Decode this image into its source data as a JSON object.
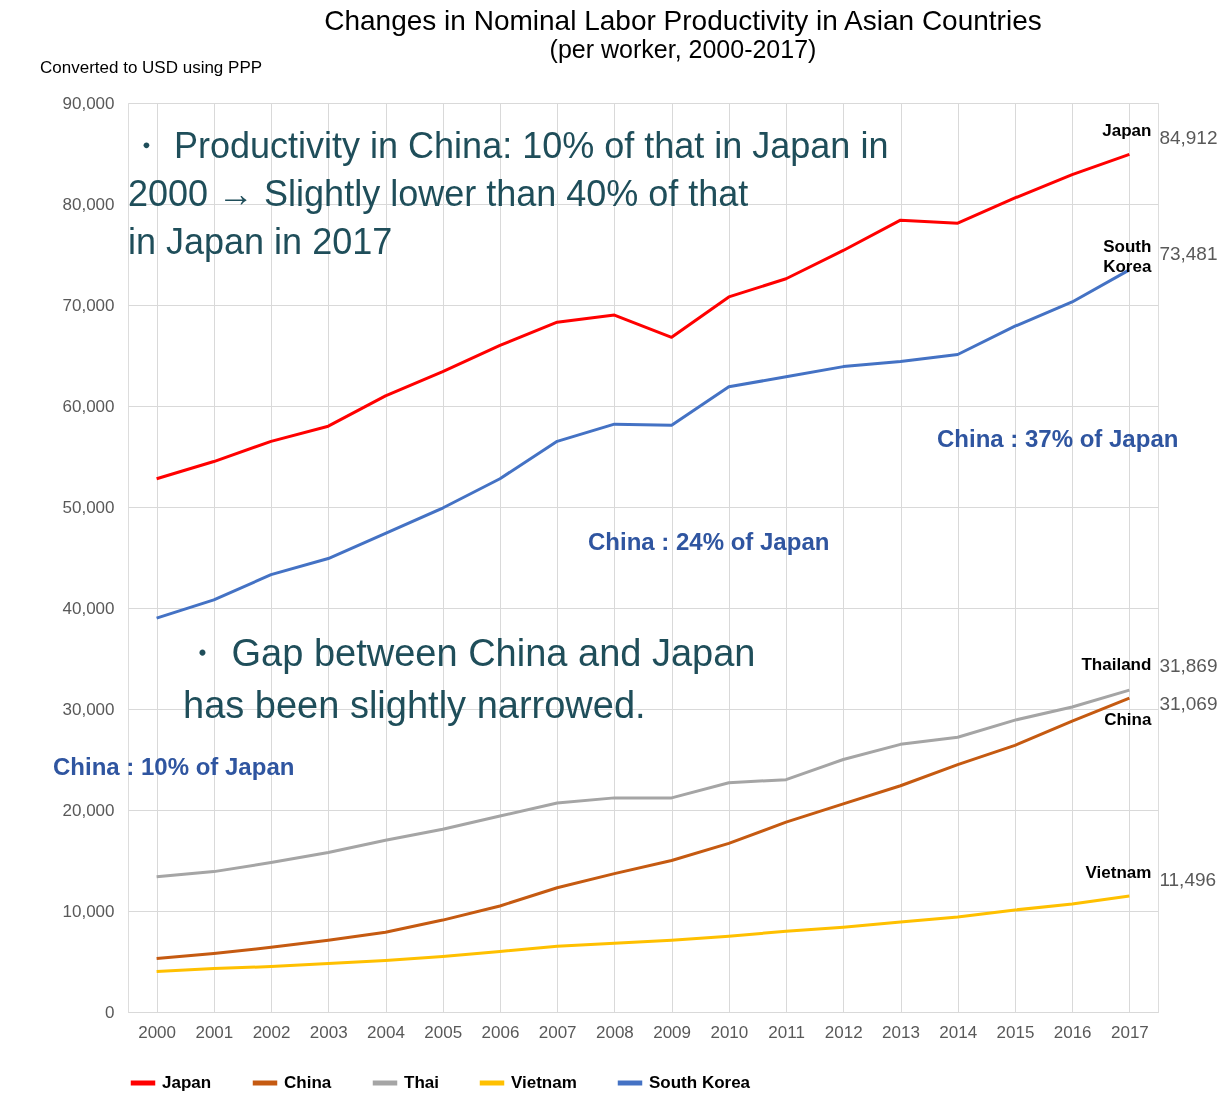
{
  "chart_data": {
    "type": "line",
    "title": "Changes in Nominal Labor Productivity in Asian Countries",
    "subtitle": "(per worker, 2000-2017)",
    "ylabel": "Converted to USD using PPP",
    "categories": [
      "2000",
      "2001",
      "2002",
      "2003",
      "2004",
      "2005",
      "2006",
      "2007",
      "2008",
      "2009",
      "2010",
      "2011",
      "2012",
      "2013",
      "2014",
      "2015",
      "2016",
      "2017"
    ],
    "ylim": [
      0,
      90000
    ],
    "yticks": [
      0,
      {
        "value": 10000,
        "label": "10,000"
      },
      {
        "value": 20000,
        "label": "20,000"
      },
      {
        "value": 30000,
        "label": "30,000"
      },
      {
        "value": 40000,
        "label": "40,000"
      },
      {
        "value": 50000,
        "label": "50,000"
      },
      {
        "value": 60000,
        "label": "60,000"
      },
      {
        "value": 70000,
        "label": "70,000"
      },
      {
        "value": 80000,
        "label": "80,000"
      },
      {
        "value": 90000,
        "label": "90,000"
      }
    ],
    "grid": true,
    "legend": "bottom",
    "line_style": "solid",
    "marker": "none",
    "series": [
      {
        "name": "Japan",
        "color": "#ff0000",
        "values": [
          52800,
          54500,
          56500,
          58000,
          61000,
          63400,
          66000,
          68300,
          69000,
          66800,
          70800,
          72600,
          75400,
          78400,
          78100,
          80600,
          82900,
          84912
        ],
        "value_labels": [
          null,
          null,
          null,
          null,
          null,
          null,
          null,
          null,
          null,
          null,
          null,
          null,
          null,
          null,
          null,
          null,
          null,
          "84,912"
        ]
      },
      {
        "name": "China",
        "color": "#c55a11",
        "values": [
          5300,
          5800,
          6400,
          7100,
          7900,
          9100,
          10500,
          12300,
          13700,
          15000,
          16700,
          18800,
          20600,
          22400,
          24500,
          26400,
          28800,
          31069
        ],
        "value_labels": [
          null,
          null,
          null,
          null,
          null,
          null,
          null,
          null,
          null,
          null,
          null,
          null,
          null,
          null,
          null,
          null,
          null,
          "31,069"
        ]
      },
      {
        "name": "Thai",
        "color": "#a5a5a5",
        "values": [
          13400,
          13900,
          14800,
          15800,
          17000,
          18100,
          19400,
          20700,
          21200,
          21200,
          22700,
          23000,
          25000,
          26500,
          27200,
          28900,
          30200,
          31869
        ],
        "value_labels": [
          null,
          null,
          null,
          null,
          null,
          null,
          null,
          null,
          null,
          null,
          null,
          null,
          null,
          null,
          null,
          null,
          null,
          "31,869"
        ]
      },
      {
        "name": "Vietnam",
        "color": "#ffc000",
        "values": [
          4000,
          4300,
          4500,
          4800,
          5100,
          5500,
          6000,
          6500,
          6800,
          7100,
          7500,
          8000,
          8400,
          8900,
          9400,
          10100,
          10700,
          11496
        ],
        "value_labels": [
          null,
          null,
          null,
          null,
          null,
          null,
          null,
          null,
          null,
          null,
          null,
          null,
          null,
          null,
          null,
          null,
          null,
          "11,496"
        ]
      },
      {
        "name": "South Korea",
        "color": "#4472c4",
        "values": [
          39000,
          40800,
          43300,
          44900,
          47400,
          49900,
          52800,
          56500,
          58200,
          58100,
          61900,
          62900,
          63900,
          64400,
          65100,
          67900,
          70300,
          73481
        ],
        "value_labels": [
          null,
          null,
          null,
          null,
          null,
          null,
          null,
          null,
          null,
          null,
          null,
          null,
          null,
          null,
          null,
          null,
          null,
          "73,481"
        ]
      }
    ],
    "annotations": [
      "・ Productivity in China: 10% of that in Japan in\n2000 → Slightly lower than 40% of that\nin Japan in 2017",
      "・ Gap between China and Japan\nhas been slightly narrowed.",
      "China : 10% of Japan",
      "China : 24% of Japan",
      "China : 37% of Japan",
      {
        "text": "Japan",
        "x": "2017",
        "y": 84912
      },
      {
        "text": "South\nKorea",
        "x": "2017",
        "y": 73481
      },
      {
        "text": "Thailand",
        "x": "2017",
        "y": 31869
      },
      {
        "text": "China",
        "x": "2017",
        "y": 31069
      },
      {
        "text": "Vietnam",
        "x": "2017",
        "y": 11496
      }
    ]
  }
}
